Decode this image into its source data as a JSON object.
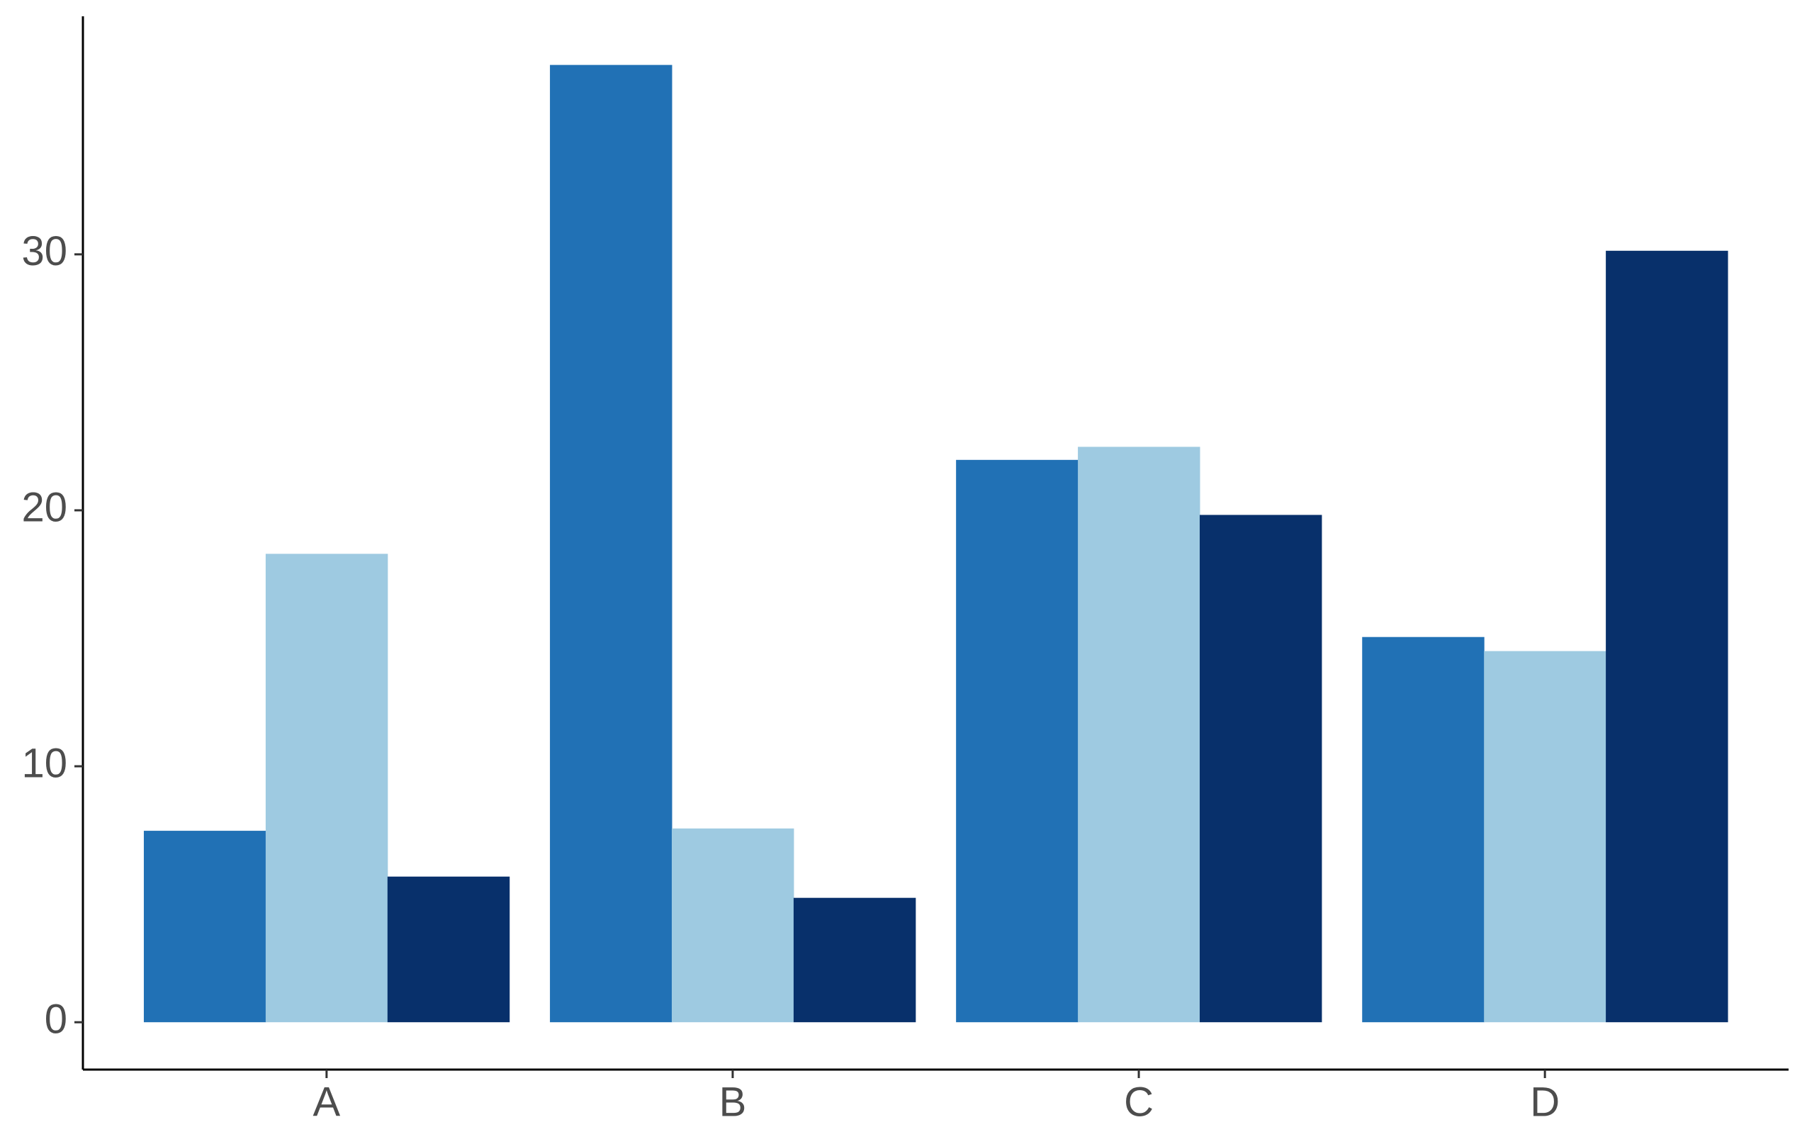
{
  "chart_data": {
    "type": "bar",
    "categories": [
      "A",
      "B",
      "C",
      "D"
    ],
    "series": [
      {
        "color": "#2171b5",
        "values": [
          7.48,
          37.4,
          21.97,
          15.05
        ]
      },
      {
        "color": "#9ecae1",
        "values": [
          18.3,
          7.57,
          22.48,
          14.5
        ]
      },
      {
        "color": "#08306b",
        "values": [
          5.69,
          4.86,
          19.82,
          30.14
        ]
      }
    ],
    "ylim": [
      -1.85,
      39.3
    ],
    "yticks": [
      0,
      10,
      20,
      30
    ],
    "grid": false
  }
}
